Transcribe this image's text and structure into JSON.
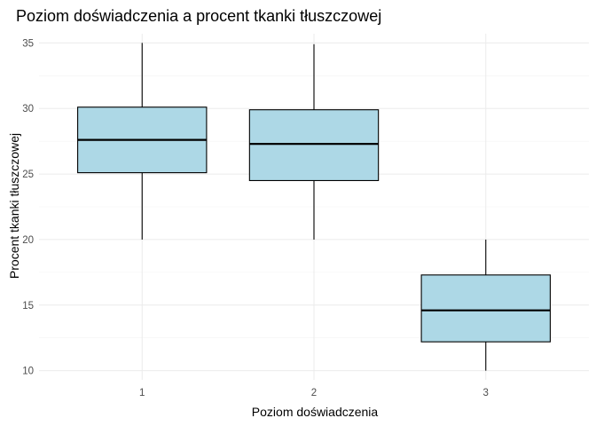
{
  "chart_data": {
    "type": "boxplot",
    "title": "Poziom doświadczenia a procent tkanki tłuszczowej",
    "xlabel": "Poziom doświadczenia",
    "ylabel": "Procent tkanki tłuszczowej",
    "categories": [
      "1",
      "2",
      "3"
    ],
    "boxes": [
      {
        "category": "1",
        "min": 20.0,
        "q1": 25.1,
        "median": 27.6,
        "q3": 30.1,
        "max": 35.0
      },
      {
        "category": "2",
        "min": 20.0,
        "q1": 24.5,
        "median": 27.3,
        "q3": 29.9,
        "max": 34.9
      },
      {
        "category": "3",
        "min": 10.0,
        "q1": 12.2,
        "median": 14.6,
        "q3": 17.3,
        "max": 20.0
      }
    ],
    "yticks": [
      10,
      15,
      20,
      25,
      30,
      35
    ],
    "ylim": [
      9.3,
      35.7
    ],
    "grid": true,
    "box_fill": "#add8e6",
    "line_color": "#000000"
  }
}
